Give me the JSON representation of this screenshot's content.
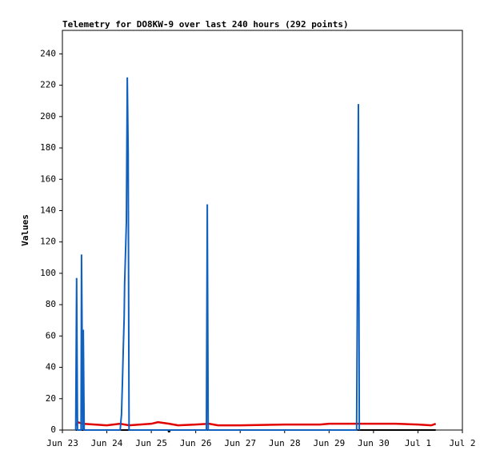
{
  "chart_data": {
    "type": "line",
    "title": "Telemetry for DO8KW-9 over last 240 hours (292 points)",
    "y_label": "Values",
    "xlim": [
      0,
      9
    ],
    "ylim": [
      0,
      255
    ],
    "xticks": [
      {
        "value": 0,
        "label": "Jun 23"
      },
      {
        "value": 1,
        "label": "Jun 24"
      },
      {
        "value": 2,
        "label": "Jun 25"
      },
      {
        "value": 3,
        "label": "Jun 26"
      },
      {
        "value": 4,
        "label": "Jun 27"
      },
      {
        "value": 5,
        "label": "Jun 28"
      },
      {
        "value": 6,
        "label": "Jun 29"
      },
      {
        "value": 7,
        "label": "Jun 30"
      },
      {
        "value": 8,
        "label": "Jul 1"
      },
      {
        "value": 9,
        "label": "Jul 2"
      }
    ],
    "yticks": [
      0,
      20,
      40,
      60,
      80,
      100,
      120,
      140,
      160,
      180,
      200,
      220,
      240
    ],
    "grid": false,
    "series": [
      {
        "color": "#000000",
        "x": [
          0.3,
          2.38,
          2.39,
          2.41,
          2.42,
          8.4
        ],
        "values": [
          0,
          0,
          -1,
          -1,
          0,
          0
        ]
      },
      {
        "color": "#e00000",
        "x": [
          0.3,
          0.35,
          0.45,
          1.0,
          1.3,
          1.5,
          2.0,
          2.15,
          2.4,
          2.6,
          3.0,
          3.3,
          3.5,
          4.0,
          5.0,
          5.8,
          6.0,
          7.0,
          7.5,
          8.0,
          8.3,
          8.4
        ],
        "values": [
          3,
          5,
          4,
          3,
          4,
          3,
          4,
          5,
          4,
          3,
          3.5,
          4,
          3,
          3,
          3.5,
          3.5,
          4,
          4,
          4,
          3.5,
          3,
          4
        ]
      },
      {
        "color": "#1060c0",
        "x": [
          0.3,
          0.32,
          0.34,
          0.42,
          0.43,
          0.46,
          0.47,
          0.49,
          1.3,
          1.33,
          1.35,
          1.37,
          1.39,
          1.4,
          1.42,
          1.44,
          1.46,
          1.48,
          1.5,
          3.24,
          3.26,
          3.28,
          6.62,
          6.64,
          6.66,
          6.68
        ],
        "values": [
          0,
          97,
          0,
          0,
          112,
          0,
          64,
          0,
          0,
          10,
          30,
          52,
          72,
          93,
          113,
          133,
          225,
          176,
          0,
          0,
          144,
          0,
          0,
          104,
          208,
          0
        ]
      }
    ]
  }
}
